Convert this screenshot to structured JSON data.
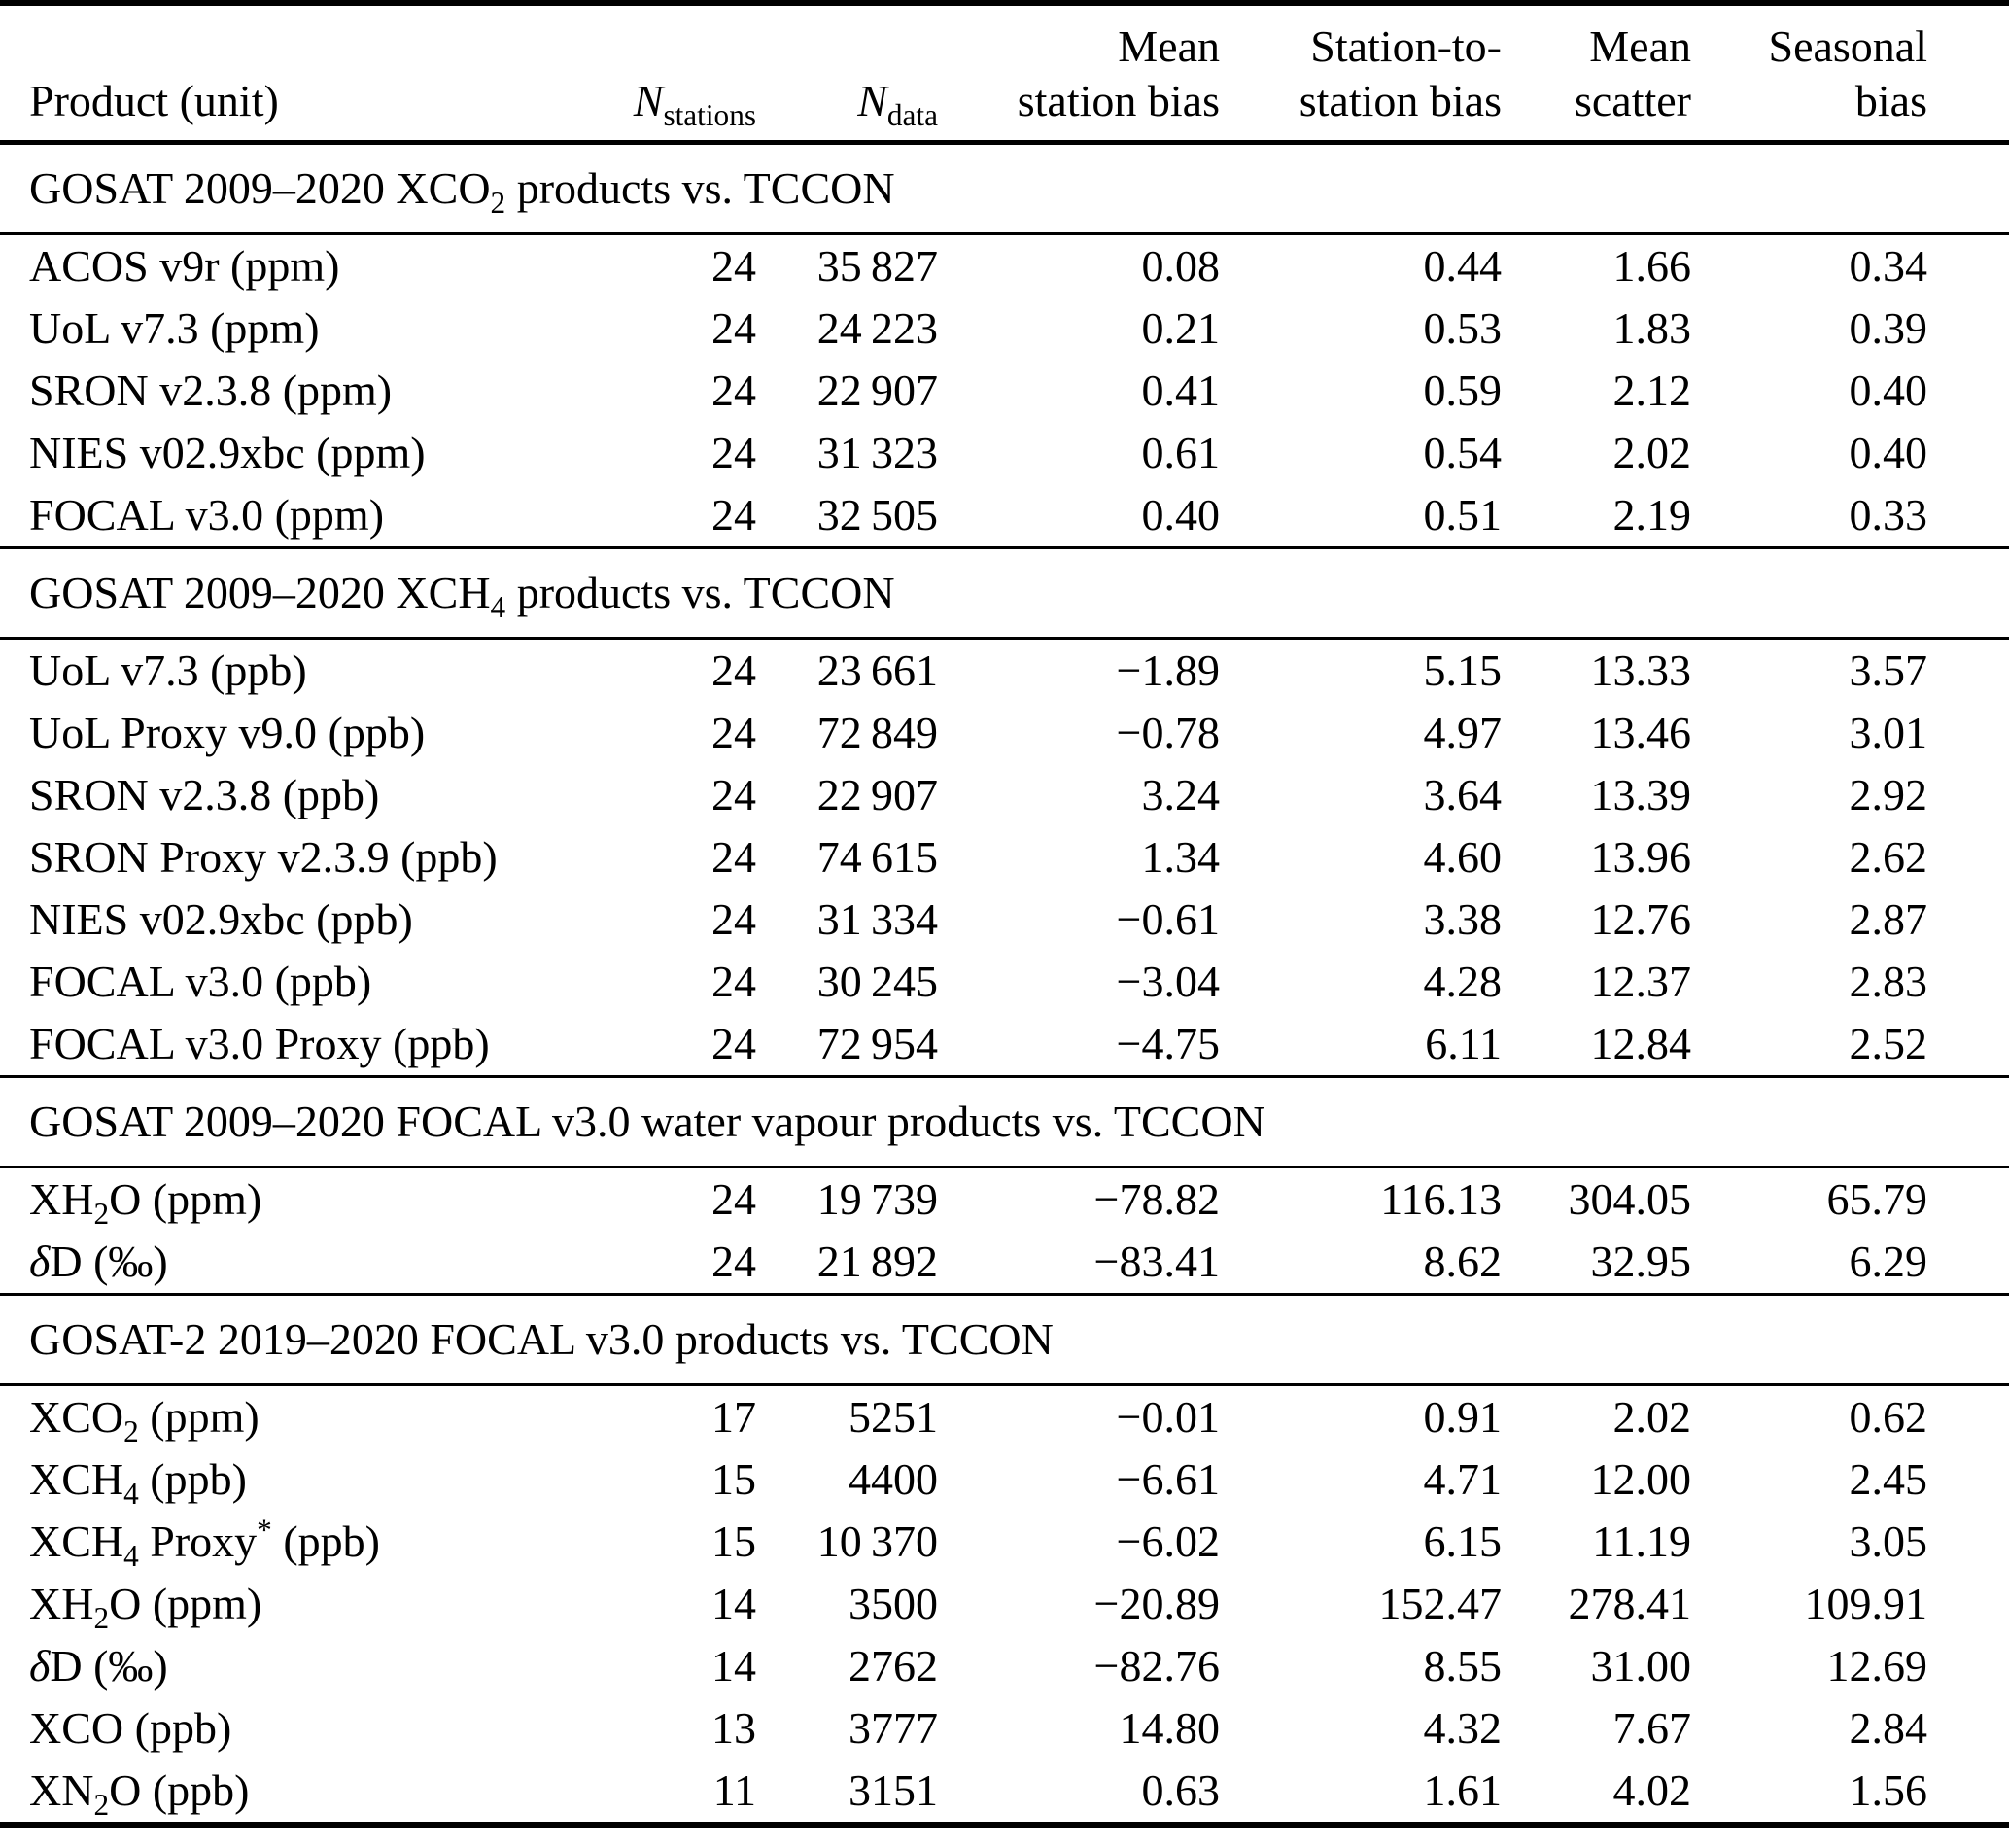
{
  "header": {
    "product": "Product (unit)",
    "n_stations": "*N*_{stations}",
    "n_data": "*N*_{data}",
    "mean_station_bias": "Mean\nstation bias",
    "station_to_station_bias": "Station-to-\nstation bias",
    "mean_scatter": "Mean\nscatter",
    "seasonal_bias": "Seasonal\nbias"
  },
  "sections": [
    {
      "title": "GOSAT 2009–2020 XCO_{2} products vs. TCCON",
      "rows": [
        [
          "ACOS v9r (ppm)",
          "24",
          "35 827",
          "0.08",
          "0.44",
          "1.66",
          "0.34"
        ],
        [
          "UoL v7.3 (ppm)",
          "24",
          "24 223",
          "0.21",
          "0.53",
          "1.83",
          "0.39"
        ],
        [
          "SRON v2.3.8 (ppm)",
          "24",
          "22 907",
          "0.41",
          "0.59",
          "2.12",
          "0.40"
        ],
        [
          "NIES v02.9xbc (ppm)",
          "24",
          "31 323",
          "0.61",
          "0.54",
          "2.02",
          "0.40"
        ],
        [
          "FOCAL v3.0 (ppm)",
          "24",
          "32 505",
          "0.40",
          "0.51",
          "2.19",
          "0.33"
        ]
      ]
    },
    {
      "title": "GOSAT 2009–2020 XCH_{4} products vs. TCCON",
      "rows": [
        [
          "UoL v7.3 (ppb)",
          "24",
          "23 661",
          "−1.89",
          "5.15",
          "13.33",
          "3.57"
        ],
        [
          "UoL Proxy v9.0 (ppb)",
          "24",
          "72 849",
          "−0.78",
          "4.97",
          "13.46",
          "3.01"
        ],
        [
          "SRON v2.3.8 (ppb)",
          "24",
          "22 907",
          "3.24",
          "3.64",
          "13.39",
          "2.92"
        ],
        [
          "SRON Proxy v2.3.9 (ppb)",
          "24",
          "74 615",
          "1.34",
          "4.60",
          "13.96",
          "2.62"
        ],
        [
          "NIES v02.9xbc (ppb)",
          "24",
          "31 334",
          "−0.61",
          "3.38",
          "12.76",
          "2.87"
        ],
        [
          "FOCAL v3.0 (ppb)",
          "24",
          "30 245",
          "−3.04",
          "4.28",
          "12.37",
          "2.83"
        ],
        [
          "FOCAL v3.0 Proxy (ppb)",
          "24",
          "72 954",
          "−4.75",
          "6.11",
          "12.84",
          "2.52"
        ]
      ]
    },
    {
      "title": "GOSAT 2009–2020 FOCAL v3.0 water vapour products vs. TCCON",
      "rows": [
        [
          "XH_{2}O (ppm)",
          "24",
          "19 739",
          "−78.82",
          "116.13",
          "304.05",
          "65.79"
        ],
        [
          "*δ*D (‰)",
          "24",
          "21 892",
          "−83.41",
          "8.62",
          "32.95",
          "6.29"
        ]
      ]
    },
    {
      "title": "GOSAT-2 2019–2020 FOCAL v3.0 products vs. TCCON",
      "rows": [
        [
          "XCO_{2} (ppm)",
          "17",
          "5251",
          "−0.01",
          "0.91",
          "2.02",
          "0.62"
        ],
        [
          "XCH_{4} (ppb)",
          "15",
          "4400",
          "−6.61",
          "4.71",
          "12.00",
          "2.45"
        ],
        [
          "XCH_{4} Proxy^{*} (ppb)",
          "15",
          "10 370",
          "−6.02",
          "6.15",
          "11.19",
          "3.05"
        ],
        [
          "XH_{2}O (ppm)",
          "14",
          "3500",
          "−20.89",
          "152.47",
          "278.41",
          "109.91"
        ],
        [
          "*δ*D (‰)",
          "14",
          "2762",
          "−82.76",
          "8.55",
          "31.00",
          "12.69"
        ],
        [
          "XCO (ppb)",
          "13",
          "3777",
          "14.80",
          "4.32",
          "7.67",
          "2.84"
        ],
        [
          "XN_{2}O (ppb)",
          "11",
          "3151",
          "0.63",
          "1.61",
          "4.02",
          "1.56"
        ]
      ]
    }
  ]
}
